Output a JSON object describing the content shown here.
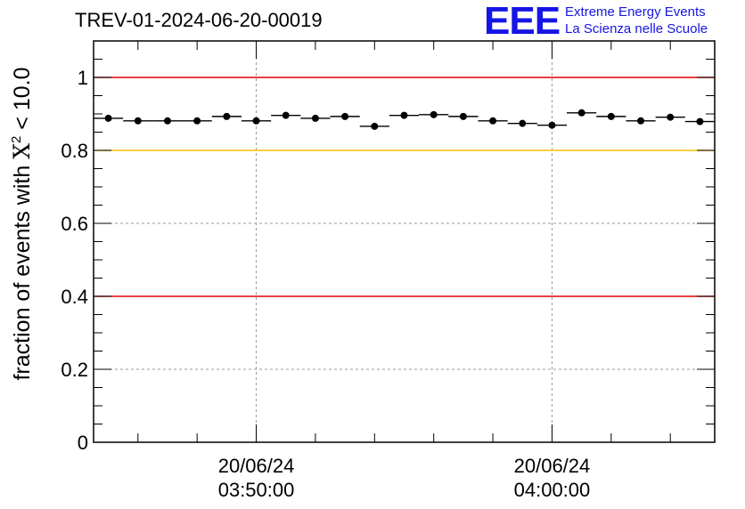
{
  "header": {
    "title": "TREV-01-2024-06-20-00019"
  },
  "logo": {
    "mark": "EEE",
    "line1": "Extreme Energy Events",
    "line2": "La Scienza nelle Scuole"
  },
  "colors": {
    "logo": "#1515e6",
    "red_line": "#e60000",
    "yellow_line": "#ffc000",
    "grid": "#9a9a9a"
  },
  "chart_data": {
    "type": "scatter",
    "ylabel": "fraction of events with",
    "ylabel_symbol": "X",
    "ylabel_sup": "2",
    "ylabel_tail": " < 10.0",
    "ylim": [
      0,
      1.1
    ],
    "yticks": [
      {
        "value": 0,
        "label": "0"
      },
      {
        "value": 0.2,
        "label": "0.2"
      },
      {
        "value": 0.4,
        "label": "0.4"
      },
      {
        "value": 0.6,
        "label": "0.6"
      },
      {
        "value": 0.8,
        "label": "0.8"
      },
      {
        "value": 1,
        "label": "1"
      }
    ],
    "xlim_minutes": [
      0,
      21
    ],
    "xticks": [
      {
        "minute": 5.5,
        "date": "20/06/24",
        "time": "03:50:00"
      },
      {
        "minute": 15.5,
        "date": "20/06/24",
        "time": "04:00:00"
      }
    ],
    "reference_lines": [
      {
        "value": 1.0,
        "color": "#e60000"
      },
      {
        "value": 0.8,
        "color": "#ffc000"
      },
      {
        "value": 0.4,
        "color": "#e60000"
      }
    ],
    "points": [
      {
        "x": 0.5,
        "y": 0.888
      },
      {
        "x": 1.5,
        "y": 0.881
      },
      {
        "x": 2.5,
        "y": 0.881
      },
      {
        "x": 3.5,
        "y": 0.881
      },
      {
        "x": 4.5,
        "y": 0.893
      },
      {
        "x": 5.5,
        "y": 0.881
      },
      {
        "x": 6.5,
        "y": 0.896
      },
      {
        "x": 7.5,
        "y": 0.888
      },
      {
        "x": 8.5,
        "y": 0.893
      },
      {
        "x": 9.5,
        "y": 0.866
      },
      {
        "x": 10.5,
        "y": 0.896
      },
      {
        "x": 11.5,
        "y": 0.898
      },
      {
        "x": 12.5,
        "y": 0.893
      },
      {
        "x": 13.5,
        "y": 0.881
      },
      {
        "x": 14.5,
        "y": 0.874
      },
      {
        "x": 15.5,
        "y": 0.869
      },
      {
        "x": 16.5,
        "y": 0.903
      },
      {
        "x": 17.5,
        "y": 0.893
      },
      {
        "x": 18.5,
        "y": 0.881
      },
      {
        "x": 19.5,
        "y": 0.891
      },
      {
        "x": 20.5,
        "y": 0.879
      }
    ]
  }
}
